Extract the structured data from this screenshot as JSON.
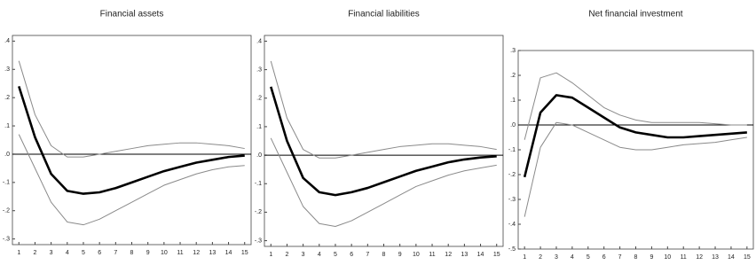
{
  "chart_data": [
    {
      "type": "line",
      "title": "Financial assets",
      "x": [
        1,
        2,
        3,
        4,
        5,
        6,
        7,
        8,
        9,
        10,
        11,
        12,
        13,
        14,
        15
      ],
      "xlim": [
        0.6,
        15.4
      ],
      "xticks": [
        1,
        2,
        3,
        4,
        5,
        6,
        7,
        8,
        9,
        10,
        11,
        12,
        13,
        14,
        15
      ],
      "ylim": [
        -0.32,
        0.42
      ],
      "yticks": [
        {
          "value": 0.4,
          "label": ".4"
        },
        {
          "value": 0.3,
          "label": ".3"
        },
        {
          "value": 0.2,
          "label": ".2"
        },
        {
          "value": 0.1,
          "label": ".1"
        },
        {
          "value": 0,
          "label": ".0"
        },
        {
          "value": -0.1,
          "label": "-.1"
        },
        {
          "value": -0.2,
          "label": "-.2"
        },
        {
          "value": -0.3,
          "label": "-.3"
        }
      ],
      "zero_line": true,
      "series": [
        {
          "color": "#000000",
          "linewidth": 2.6,
          "values": [
            0.24,
            0.06,
            -0.07,
            -0.13,
            -0.14,
            -0.135,
            -0.12,
            -0.1,
            -0.08,
            -0.06,
            -0.045,
            -0.03,
            -0.02,
            -0.01,
            -0.005
          ]
        },
        {
          "color": "#8a8a8a",
          "linewidth": 1,
          "values": [
            0.33,
            0.14,
            0.03,
            -0.01,
            -0.01,
            0.0,
            0.01,
            0.02,
            0.03,
            0.035,
            0.04,
            0.04,
            0.035,
            0.03,
            0.02
          ]
        },
        {
          "color": "#8a8a8a",
          "linewidth": 1,
          "values": [
            0.07,
            -0.05,
            -0.17,
            -0.24,
            -0.25,
            -0.23,
            -0.2,
            -0.17,
            -0.14,
            -0.11,
            -0.09,
            -0.07,
            -0.055,
            -0.045,
            -0.04
          ]
        }
      ]
    },
    {
      "type": "line",
      "title": "Financial liabilities",
      "x": [
        1,
        2,
        3,
        4,
        5,
        6,
        7,
        8,
        9,
        10,
        11,
        12,
        13,
        14,
        15
      ],
      "xlim": [
        0.6,
        15.4
      ],
      "xticks": [
        1,
        2,
        3,
        4,
        5,
        6,
        7,
        8,
        9,
        10,
        11,
        12,
        13,
        14,
        15
      ],
      "ylim": [
        -0.32,
        0.42
      ],
      "yticks": [
        {
          "value": 0.4,
          "label": ".4"
        },
        {
          "value": 0.3,
          "label": ".3"
        },
        {
          "value": 0.2,
          "label": ".2"
        },
        {
          "value": 0.1,
          "label": ".1"
        },
        {
          "value": 0,
          "label": ".0"
        },
        {
          "value": -0.1,
          "label": "-.1"
        },
        {
          "value": -0.2,
          "label": "-.2"
        },
        {
          "value": -0.3,
          "label": "-.3"
        }
      ],
      "zero_line": true,
      "series": [
        {
          "color": "#000000",
          "linewidth": 2.6,
          "values": [
            0.24,
            0.05,
            -0.08,
            -0.13,
            -0.14,
            -0.13,
            -0.115,
            -0.095,
            -0.075,
            -0.055,
            -0.04,
            -0.025,
            -0.015,
            -0.008,
            -0.004
          ]
        },
        {
          "color": "#8a8a8a",
          "linewidth": 1,
          "values": [
            0.33,
            0.13,
            0.02,
            -0.01,
            -0.01,
            0.0,
            0.01,
            0.02,
            0.03,
            0.035,
            0.04,
            0.04,
            0.035,
            0.03,
            0.02
          ]
        },
        {
          "color": "#8a8a8a",
          "linewidth": 1,
          "values": [
            0.06,
            -0.06,
            -0.18,
            -0.24,
            -0.25,
            -0.23,
            -0.2,
            -0.17,
            -0.14,
            -0.11,
            -0.09,
            -0.07,
            -0.055,
            -0.045,
            -0.035
          ]
        }
      ]
    },
    {
      "type": "line",
      "title": "Net financial investment",
      "x": [
        1,
        2,
        3,
        4,
        5,
        6,
        7,
        8,
        9,
        10,
        11,
        12,
        13,
        14,
        15
      ],
      "xlim": [
        0.6,
        15.4
      ],
      "xticks": [
        1,
        2,
        3,
        4,
        5,
        6,
        7,
        8,
        9,
        10,
        11,
        12,
        13,
        14,
        15
      ],
      "ylim": [
        -0.5,
        0.3
      ],
      "yticks": [
        {
          "value": 0.3,
          "label": ".3"
        },
        {
          "value": 0.2,
          "label": ".2"
        },
        {
          "value": 0.1,
          "label": ".1"
        },
        {
          "value": 0,
          "label": ".0"
        },
        {
          "value": -0.1,
          "label": "-.1"
        },
        {
          "value": -0.2,
          "label": "-.2"
        },
        {
          "value": -0.3,
          "label": "-.3"
        },
        {
          "value": -0.4,
          "label": "-.4"
        },
        {
          "value": -0.5,
          "label": "-.5"
        }
      ],
      "zero_line": true,
      "series": [
        {
          "color": "#000000",
          "linewidth": 2.6,
          "values": [
            -0.21,
            0.05,
            0.12,
            0.11,
            0.07,
            0.03,
            -0.01,
            -0.03,
            -0.04,
            -0.05,
            -0.05,
            -0.045,
            -0.04,
            -0.035,
            -0.03
          ]
        },
        {
          "color": "#8a8a8a",
          "linewidth": 1,
          "values": [
            -0.06,
            0.19,
            0.21,
            0.17,
            0.12,
            0.07,
            0.04,
            0.02,
            0.01,
            0.01,
            0.01,
            0.01,
            0.005,
            0.0,
            0.0
          ]
        },
        {
          "color": "#8a8a8a",
          "linewidth": 1,
          "values": [
            -0.37,
            -0.09,
            0.01,
            0.0,
            -0.03,
            -0.06,
            -0.09,
            -0.1,
            -0.1,
            -0.09,
            -0.08,
            -0.075,
            -0.07,
            -0.06,
            -0.05
          ]
        }
      ]
    }
  ]
}
